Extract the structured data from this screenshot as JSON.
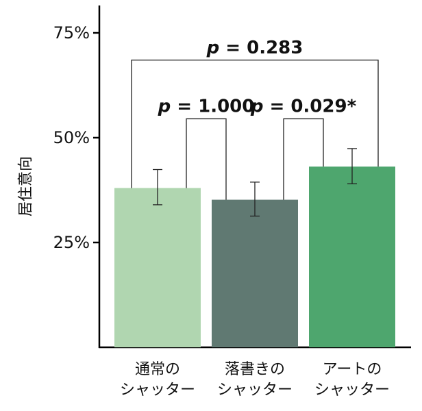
{
  "chart_data": {
    "type": "bar",
    "ylabel": "居住意向",
    "xlabel": "",
    "ylim": [
      0,
      0.8
    ],
    "yticks": [
      {
        "value": 0.25,
        "label": "25%"
      },
      {
        "value": 0.5,
        "label": "50%"
      },
      {
        "value": 0.75,
        "label": "75%"
      }
    ],
    "grid": false,
    "categories": [
      [
        "通常の",
        "シャッター"
      ],
      [
        "落書きの",
        "シャッター"
      ],
      [
        "アートの",
        "シャッター"
      ]
    ],
    "values": [
      0.38,
      0.352,
      0.431
    ],
    "error_low": [
      0.34,
      0.313,
      0.39
    ],
    "error_high": [
      0.424,
      0.394,
      0.474
    ],
    "colors": [
      "#b0d6b0",
      "#607972",
      "#4ea66e"
    ],
    "comparisons": [
      {
        "pair": [
          0,
          1
        ],
        "label": "p = 1.000",
        "height": 0.545
      },
      {
        "pair": [
          1,
          2
        ],
        "label": "p = 0.029*",
        "height": 0.545
      },
      {
        "pair": [
          0,
          2
        ],
        "label": "p = 0.283",
        "height": 0.685
      }
    ]
  }
}
